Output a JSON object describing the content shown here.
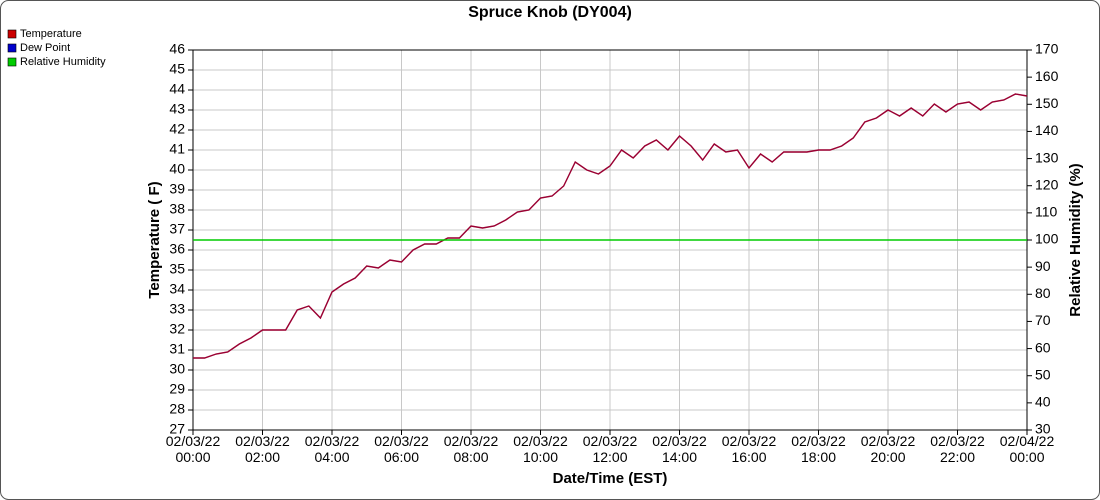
{
  "chart_data": {
    "type": "line",
    "title": "Spruce Knob (DY004)",
    "x_label": "Date/Time (EST)",
    "y_label": "Temperature ( F)",
    "y2_label": "Relative Humidity (%)",
    "x": [
      "02/03/22 00:00",
      "02/03/22 00:20",
      "02/03/22 00:40",
      "02/03/22 01:00",
      "02/03/22 01:20",
      "02/03/22 01:40",
      "02/03/22 02:00",
      "02/03/22 02:20",
      "02/03/22 02:40",
      "02/03/22 03:00",
      "02/03/22 03:20",
      "02/03/22 03:40",
      "02/03/22 04:00",
      "02/03/22 04:20",
      "02/03/22 04:40",
      "02/03/22 05:00",
      "02/03/22 05:20",
      "02/03/22 05:40",
      "02/03/22 06:00",
      "02/03/22 06:20",
      "02/03/22 06:40",
      "02/03/22 07:00",
      "02/03/22 07:20",
      "02/03/22 07:40",
      "02/03/22 08:00",
      "02/03/22 08:20",
      "02/03/22 08:40",
      "02/03/22 09:00",
      "02/03/22 09:20",
      "02/03/22 09:40",
      "02/03/22 10:00",
      "02/03/22 10:20",
      "02/03/22 10:40",
      "02/03/22 11:00",
      "02/03/22 11:20",
      "02/03/22 11:40",
      "02/03/22 12:00",
      "02/03/22 12:20",
      "02/03/22 12:40",
      "02/03/22 13:00",
      "02/03/22 13:20",
      "02/03/22 13:40",
      "02/03/22 14:00",
      "02/03/22 14:20",
      "02/03/22 14:40",
      "02/03/22 15:00",
      "02/03/22 15:20",
      "02/03/22 15:40",
      "02/03/22 16:00",
      "02/03/22 16:20",
      "02/03/22 16:40",
      "02/03/22 17:00",
      "02/03/22 17:20",
      "02/03/22 17:40",
      "02/03/22 18:00",
      "02/03/22 18:20",
      "02/03/22 18:40",
      "02/03/22 19:00",
      "02/03/22 19:20",
      "02/03/22 19:40",
      "02/03/22 20:00",
      "02/03/22 20:20",
      "02/03/22 20:40",
      "02/03/22 21:00",
      "02/03/22 21:20",
      "02/03/22 21:40",
      "02/03/22 22:00",
      "02/03/22 22:20",
      "02/03/22 22:40",
      "02/03/22 23:00",
      "02/03/22 23:20",
      "02/03/22 23:40",
      "02/04/22 00:00"
    ],
    "series": [
      {
        "name": "Temperature",
        "color": "#cc0000",
        "values": [
          30.6,
          30.6,
          30.8,
          30.9,
          31.3,
          31.6,
          32.0,
          32.0,
          32.0,
          33.0,
          33.2,
          32.6,
          33.9,
          34.3,
          34.6,
          35.2,
          35.1,
          35.5,
          35.4,
          36.0,
          36.3,
          36.3,
          36.6,
          36.6,
          37.2,
          37.1,
          37.2,
          37.5,
          37.9,
          38.0,
          38.6,
          38.7,
          39.2,
          40.4,
          40.0,
          39.8,
          40.2,
          41.0,
          40.6,
          41.2,
          41.5,
          41.0,
          41.7,
          41.2,
          40.5,
          41.3,
          40.9,
          41.0,
          40.1,
          40.8,
          40.4,
          40.9,
          40.9,
          40.9,
          41.0,
          41.0,
          41.2,
          41.6,
          42.4,
          42.6,
          43.0,
          42.7,
          43.1,
          42.7,
          43.3,
          42.9,
          43.3,
          43.4,
          43.0,
          43.4,
          43.5,
          43.8,
          43.7
        ]
      },
      {
        "name": "Dew Point",
        "color": "#0000cc",
        "values": [
          30.6,
          30.6,
          30.8,
          30.9,
          31.3,
          31.6,
          32.0,
          32.0,
          32.0,
          33.0,
          33.2,
          32.6,
          33.9,
          34.3,
          34.6,
          35.2,
          35.1,
          35.5,
          35.4,
          36.0,
          36.3,
          36.3,
          36.6,
          36.6,
          37.2,
          37.1,
          37.2,
          37.5,
          37.9,
          38.0,
          38.6,
          38.7,
          39.2,
          40.4,
          40.0,
          39.8,
          40.2,
          41.0,
          40.6,
          41.2,
          41.5,
          41.0,
          41.7,
          41.2,
          40.5,
          41.3,
          40.9,
          41.0,
          40.1,
          40.8,
          40.4,
          40.9,
          40.9,
          40.9,
          41.0,
          41.0,
          41.2,
          41.6,
          42.4,
          42.6,
          43.0,
          42.7,
          43.1,
          42.7,
          43.3,
          42.9,
          43.3,
          43.4,
          43.0,
          43.4,
          43.5,
          43.8,
          43.7
        ]
      },
      {
        "name": "Relative Humidity",
        "color": "#00cc00",
        "axis": "y2",
        "values": [
          100,
          100,
          100,
          100,
          100,
          100,
          100,
          100,
          100,
          100,
          100,
          100,
          100,
          100,
          100,
          100,
          100,
          100,
          100,
          100,
          100,
          100,
          100,
          100,
          100,
          100,
          100,
          100,
          100,
          100,
          100,
          100,
          100,
          100,
          100,
          100,
          100,
          100,
          100,
          100,
          100,
          100,
          100,
          100,
          100,
          100,
          100,
          100,
          100,
          100,
          100,
          100,
          100,
          100,
          100,
          100,
          100,
          100,
          100,
          100,
          100,
          100,
          100,
          100,
          100,
          100,
          100,
          100,
          100,
          100,
          100,
          100,
          100
        ]
      }
    ],
    "xlim": [
      "02/03/22 00:00",
      "02/04/22 00:00"
    ],
    "xticks": [
      "02/03/22 00:00",
      "02/03/22 02:00",
      "02/03/22 04:00",
      "02/03/22 06:00",
      "02/03/22 08:00",
      "02/03/22 10:00",
      "02/03/22 12:00",
      "02/03/22 14:00",
      "02/03/22 16:00",
      "02/03/22 18:00",
      "02/03/22 20:00",
      "02/03/22 22:00",
      "02/04/22 00:00"
    ],
    "ylim": [
      27,
      46
    ],
    "yticks": [
      27,
      28,
      29,
      30,
      31,
      32,
      33,
      34,
      35,
      36,
      37,
      38,
      39,
      40,
      41,
      42,
      43,
      44,
      45,
      46
    ],
    "y2lim": [
      30,
      170
    ],
    "y2ticks": [
      30,
      40,
      50,
      60,
      70,
      80,
      90,
      100,
      110,
      120,
      130,
      140,
      150,
      160,
      170
    ],
    "grid": true,
    "legend": "top-left"
  }
}
